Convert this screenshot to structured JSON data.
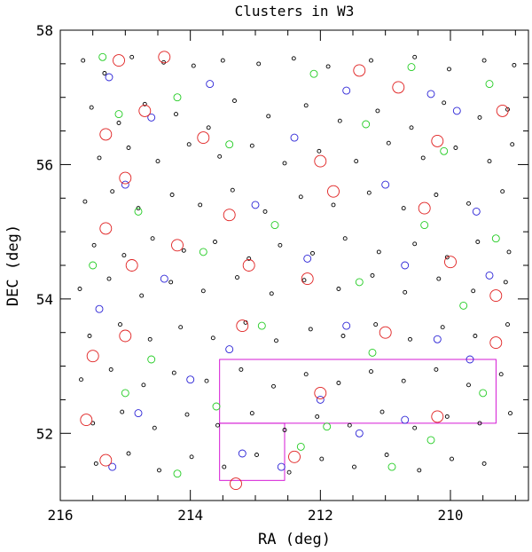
{
  "chart_data": {
    "type": "scatter",
    "title": "Clusters in W3",
    "xlabel": "RA (deg)",
    "ylabel": "DEC (deg)",
    "xlim": [
      216.0,
      208.8
    ],
    "ylim": [
      51.0,
      58.0
    ],
    "x_direction": "reversed",
    "grid": false,
    "legend": "none",
    "x_ticks": [
      216,
      214,
      212,
      210
    ],
    "y_ticks": [
      52,
      54,
      56,
      58
    ],
    "colors": {
      "faint": "#000000",
      "medium": "#2a22d6",
      "bright": "#22cc22",
      "richest": "#e02020",
      "field_outline": "#d000d0"
    },
    "series": [
      {
        "color": "#000000",
        "marker_size": "small",
        "points": [
          [
            215.65,
            57.55
          ],
          [
            215.32,
            57.36
          ],
          [
            214.9,
            57.6
          ],
          [
            214.41,
            57.52
          ],
          [
            213.95,
            57.47
          ],
          [
            213.5,
            57.55
          ],
          [
            212.95,
            57.5
          ],
          [
            212.41,
            57.58
          ],
          [
            211.88,
            57.46
          ],
          [
            211.22,
            57.55
          ],
          [
            210.55,
            57.6
          ],
          [
            210.02,
            57.42
          ],
          [
            209.48,
            57.55
          ],
          [
            209.02,
            57.48
          ],
          [
            215.52,
            56.85
          ],
          [
            215.1,
            56.62
          ],
          [
            214.7,
            56.9
          ],
          [
            214.22,
            56.75
          ],
          [
            213.72,
            56.55
          ],
          [
            213.32,
            56.95
          ],
          [
            212.8,
            56.72
          ],
          [
            212.22,
            56.88
          ],
          [
            211.7,
            56.65
          ],
          [
            211.12,
            56.8
          ],
          [
            210.6,
            56.55
          ],
          [
            210.1,
            56.92
          ],
          [
            209.55,
            56.7
          ],
          [
            209.12,
            56.82
          ],
          [
            215.4,
            56.1
          ],
          [
            214.95,
            56.25
          ],
          [
            214.5,
            56.05
          ],
          [
            214.02,
            56.3
          ],
          [
            213.55,
            56.12
          ],
          [
            213.05,
            56.28
          ],
          [
            212.55,
            56.02
          ],
          [
            212.02,
            56.2
          ],
          [
            211.45,
            56.05
          ],
          [
            210.95,
            56.32
          ],
          [
            210.42,
            56.1
          ],
          [
            209.92,
            56.25
          ],
          [
            209.4,
            56.05
          ],
          [
            209.05,
            56.3
          ],
          [
            215.62,
            55.45
          ],
          [
            215.2,
            55.6
          ],
          [
            214.8,
            55.35
          ],
          [
            214.28,
            55.55
          ],
          [
            213.85,
            55.4
          ],
          [
            213.35,
            55.62
          ],
          [
            212.85,
            55.3
          ],
          [
            212.3,
            55.52
          ],
          [
            211.8,
            55.4
          ],
          [
            211.25,
            55.58
          ],
          [
            210.72,
            55.35
          ],
          [
            210.22,
            55.55
          ],
          [
            209.72,
            55.42
          ],
          [
            209.2,
            55.6
          ],
          [
            215.48,
            54.8
          ],
          [
            215.02,
            54.65
          ],
          [
            214.58,
            54.9
          ],
          [
            214.1,
            54.72
          ],
          [
            213.62,
            54.85
          ],
          [
            213.1,
            54.6
          ],
          [
            212.62,
            54.8
          ],
          [
            212.12,
            54.68
          ],
          [
            211.62,
            54.9
          ],
          [
            211.1,
            54.7
          ],
          [
            210.55,
            54.82
          ],
          [
            210.05,
            54.62
          ],
          [
            209.58,
            54.85
          ],
          [
            209.1,
            54.7
          ],
          [
            215.7,
            54.15
          ],
          [
            215.25,
            54.3
          ],
          [
            214.75,
            54.05
          ],
          [
            214.3,
            54.25
          ],
          [
            213.8,
            54.12
          ],
          [
            213.28,
            54.32
          ],
          [
            212.75,
            54.08
          ],
          [
            212.25,
            54.28
          ],
          [
            211.72,
            54.15
          ],
          [
            211.2,
            54.35
          ],
          [
            210.7,
            54.1
          ],
          [
            210.18,
            54.3
          ],
          [
            209.65,
            54.12
          ],
          [
            209.15,
            54.25
          ],
          [
            215.55,
            53.45
          ],
          [
            215.08,
            53.62
          ],
          [
            214.62,
            53.4
          ],
          [
            214.15,
            53.58
          ],
          [
            213.65,
            53.42
          ],
          [
            213.15,
            53.65
          ],
          [
            212.68,
            53.38
          ],
          [
            212.15,
            53.55
          ],
          [
            211.65,
            53.45
          ],
          [
            211.15,
            53.62
          ],
          [
            210.62,
            53.4
          ],
          [
            210.12,
            53.58
          ],
          [
            209.62,
            53.45
          ],
          [
            209.12,
            53.62
          ],
          [
            215.68,
            52.8
          ],
          [
            215.22,
            52.95
          ],
          [
            214.72,
            52.72
          ],
          [
            214.25,
            52.9
          ],
          [
            213.75,
            52.78
          ],
          [
            213.22,
            52.95
          ],
          [
            212.72,
            52.7
          ],
          [
            212.22,
            52.88
          ],
          [
            211.72,
            52.75
          ],
          [
            211.22,
            52.92
          ],
          [
            210.72,
            52.78
          ],
          [
            210.22,
            52.95
          ],
          [
            209.72,
            52.72
          ],
          [
            209.22,
            52.88
          ],
          [
            215.5,
            52.15
          ],
          [
            215.05,
            52.32
          ],
          [
            214.55,
            52.08
          ],
          [
            214.05,
            52.28
          ],
          [
            213.58,
            52.12
          ],
          [
            213.05,
            52.3
          ],
          [
            212.55,
            52.05
          ],
          [
            212.05,
            52.25
          ],
          [
            211.55,
            52.12
          ],
          [
            211.05,
            52.32
          ],
          [
            210.55,
            52.08
          ],
          [
            210.05,
            52.25
          ],
          [
            209.55,
            52.15
          ],
          [
            209.08,
            52.3
          ],
          [
            215.45,
            51.55
          ],
          [
            214.95,
            51.7
          ],
          [
            214.48,
            51.45
          ],
          [
            213.98,
            51.65
          ],
          [
            213.48,
            51.5
          ],
          [
            212.98,
            51.68
          ],
          [
            212.48,
            51.42
          ],
          [
            211.98,
            51.62
          ],
          [
            211.48,
            51.5
          ],
          [
            210.98,
            51.68
          ],
          [
            210.48,
            51.45
          ],
          [
            209.98,
            51.62
          ],
          [
            209.48,
            51.55
          ]
        ]
      },
      {
        "color": "#2a22d6",
        "marker_size": "medium",
        "points": [
          [
            215.25,
            57.3
          ],
          [
            213.7,
            57.2
          ],
          [
            211.6,
            57.1
          ],
          [
            210.3,
            57.05
          ],
          [
            214.6,
            56.7
          ],
          [
            212.4,
            56.4
          ],
          [
            209.9,
            56.8
          ],
          [
            215.0,
            55.7
          ],
          [
            213.0,
            55.4
          ],
          [
            211.0,
            55.7
          ],
          [
            209.6,
            55.3
          ],
          [
            214.4,
            54.3
          ],
          [
            212.2,
            54.6
          ],
          [
            210.7,
            54.5
          ],
          [
            209.4,
            54.35
          ],
          [
            215.4,
            53.85
          ],
          [
            213.4,
            53.25
          ],
          [
            211.6,
            53.6
          ],
          [
            210.2,
            53.4
          ],
          [
            214.0,
            52.8
          ],
          [
            212.0,
            52.5
          ],
          [
            211.4,
            52.0
          ],
          [
            210.7,
            52.2
          ],
          [
            213.2,
            51.7
          ],
          [
            215.2,
            51.5
          ],
          [
            212.6,
            51.5
          ],
          [
            214.8,
            52.3
          ],
          [
            209.7,
            53.1
          ]
        ]
      },
      {
        "color": "#22cc22",
        "marker_size": "medium",
        "points": [
          [
            215.35,
            57.6
          ],
          [
            214.2,
            57.0
          ],
          [
            212.1,
            57.35
          ],
          [
            210.6,
            57.45
          ],
          [
            209.4,
            57.2
          ],
          [
            215.1,
            56.75
          ],
          [
            213.4,
            56.3
          ],
          [
            211.3,
            56.6
          ],
          [
            210.1,
            56.2
          ],
          [
            214.8,
            55.3
          ],
          [
            212.7,
            55.1
          ],
          [
            210.4,
            55.1
          ],
          [
            209.3,
            54.9
          ],
          [
            215.5,
            54.5
          ],
          [
            213.8,
            54.7
          ],
          [
            211.4,
            54.25
          ],
          [
            209.8,
            53.9
          ],
          [
            214.6,
            53.1
          ],
          [
            212.9,
            53.6
          ],
          [
            211.2,
            53.2
          ],
          [
            209.5,
            52.6
          ],
          [
            215.0,
            52.6
          ],
          [
            213.6,
            52.4
          ],
          [
            211.9,
            52.1
          ],
          [
            210.3,
            51.9
          ],
          [
            214.2,
            51.4
          ],
          [
            212.3,
            51.8
          ],
          [
            210.9,
            51.5
          ]
        ]
      },
      {
        "color": "#e02020",
        "marker_size": "large",
        "points": [
          [
            215.1,
            57.55
          ],
          [
            214.4,
            57.6
          ],
          [
            211.4,
            57.4
          ],
          [
            210.8,
            57.15
          ],
          [
            209.2,
            56.8
          ],
          [
            215.3,
            56.45
          ],
          [
            214.7,
            56.8
          ],
          [
            213.8,
            56.4
          ],
          [
            212.0,
            56.05
          ],
          [
            210.2,
            56.35
          ],
          [
            215.0,
            55.8
          ],
          [
            213.4,
            55.25
          ],
          [
            211.8,
            55.6
          ],
          [
            210.4,
            55.35
          ],
          [
            215.3,
            55.05
          ],
          [
            214.2,
            54.8
          ],
          [
            213.1,
            54.5
          ],
          [
            210.0,
            54.55
          ],
          [
            214.9,
            54.5
          ],
          [
            212.2,
            54.3
          ],
          [
            209.3,
            54.05
          ],
          [
            215.0,
            53.45
          ],
          [
            213.2,
            53.6
          ],
          [
            211.0,
            53.5
          ],
          [
            209.3,
            53.35
          ],
          [
            215.5,
            53.15
          ],
          [
            212.0,
            52.6
          ],
          [
            210.2,
            52.25
          ],
          [
            215.6,
            52.2
          ],
          [
            213.3,
            51.25
          ],
          [
            212.4,
            51.65
          ],
          [
            215.3,
            51.6
          ]
        ]
      }
    ],
    "regions": [
      {
        "kind": "outline",
        "color": "#d000d0",
        "ra": [
          213.55,
          209.3
        ],
        "dec": [
          52.15,
          53.1
        ]
      },
      {
        "kind": "outline",
        "color": "#d000d0",
        "ra": [
          213.55,
          212.55
        ],
        "dec": [
          51.3,
          52.15
        ]
      }
    ]
  }
}
